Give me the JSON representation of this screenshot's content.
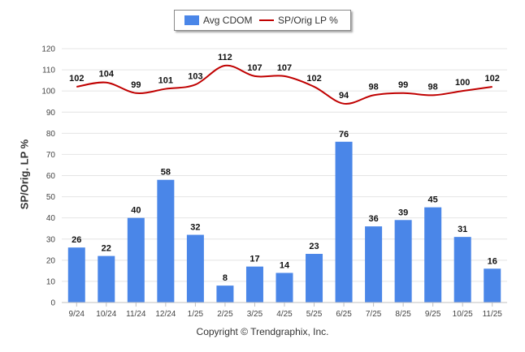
{
  "chart_data": {
    "type": "bar",
    "title": "",
    "xlabel": "",
    "ylabel": "SP/Orig. LP %",
    "ylim": [
      0,
      120
    ],
    "yticks": [
      0,
      10,
      20,
      30,
      40,
      50,
      60,
      70,
      80,
      90,
      100,
      110,
      120
    ],
    "grid": true,
    "legend_position": "top-center",
    "categories": [
      "9/24",
      "10/24",
      "11/24",
      "12/24",
      "1/25",
      "2/25",
      "3/25",
      "4/25",
      "5/25",
      "6/25",
      "7/25",
      "8/25",
      "9/25",
      "10/25",
      "11/25"
    ],
    "series": [
      {
        "name": "Avg CDOM",
        "type": "bar",
        "color": "#4a86e8",
        "values": [
          26,
          22,
          40,
          58,
          32,
          8,
          17,
          14,
          23,
          76,
          36,
          39,
          45,
          31,
          16
        ]
      },
      {
        "name": "SP/Orig LP %",
        "type": "line",
        "color": "#c00000",
        "values": [
          102,
          104,
          99,
          101,
          103,
          112,
          107,
          107,
          102,
          94,
          98,
          99,
          98,
          100,
          102
        ]
      }
    ]
  },
  "footer": {
    "copyright": "Copyright © Trendgraphix, Inc."
  }
}
